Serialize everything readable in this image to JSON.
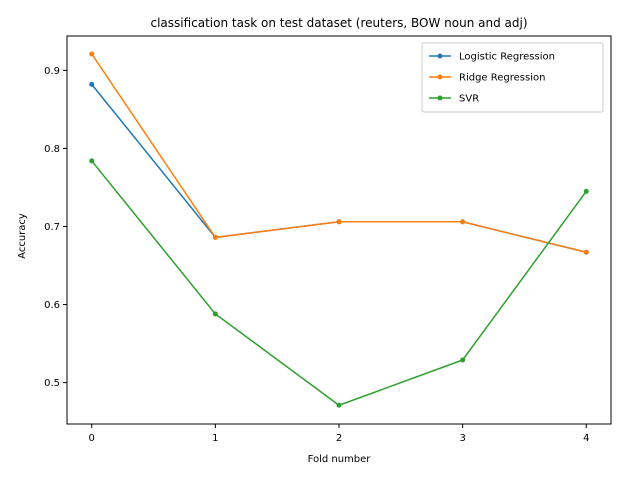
{
  "chart_data": {
    "type": "line",
    "title": "classification task on test dataset (reuters, BOW noun and adj)",
    "xlabel": "Fold number",
    "ylabel": "Accuracy",
    "x": [
      0,
      1,
      2,
      3,
      4
    ],
    "xticks": [
      "0",
      "1",
      "2",
      "3",
      "4"
    ],
    "xlim": [
      -0.2,
      4.2
    ],
    "yticks": [
      "0.5",
      "0.6",
      "0.7",
      "0.8",
      "0.9"
    ],
    "ytick_values": [
      0.5,
      0.6,
      0.7,
      0.8,
      0.9
    ],
    "ylim": [
      0.447,
      0.944
    ],
    "grid": false,
    "legend_position": "top-right",
    "series": [
      {
        "name": "Logistic Regression",
        "color": "#1f77b4",
        "values": [
          0.882,
          0.686,
          0.706,
          0.706,
          0.667
        ]
      },
      {
        "name": "Ridge Regression",
        "color": "#ff7f0e",
        "values": [
          0.921,
          0.686,
          0.706,
          0.706,
          0.667
        ]
      },
      {
        "name": "SVR",
        "color": "#2ca02c",
        "values": [
          0.784,
          0.588,
          0.471,
          0.529,
          0.745
        ]
      }
    ]
  }
}
